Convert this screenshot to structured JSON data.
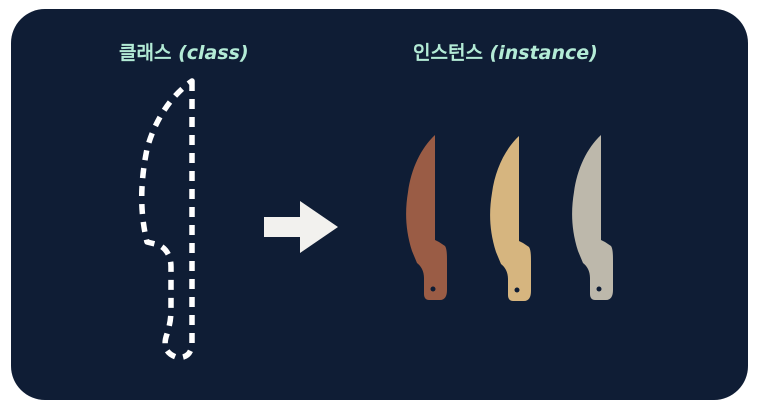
{
  "class_label": {
    "ko": "클래스",
    "en": "(class)"
  },
  "instance_label": {
    "ko": "인스턴스",
    "en": "(instance)"
  },
  "colors": {
    "background": "#0f1d35",
    "label": "#b3ebd6",
    "outline": "#ffffff",
    "arrow": "#f2f1ee",
    "instance_knives": [
      "#9a5c45",
      "#d6b57f",
      "#bdb8ab"
    ]
  },
  "icons": {
    "class_shape": "dashed-knife-outline-icon",
    "transform": "arrow-right-icon",
    "instances": [
      "brown-knife-icon",
      "gold-knife-icon",
      "grey-knife-icon"
    ]
  }
}
